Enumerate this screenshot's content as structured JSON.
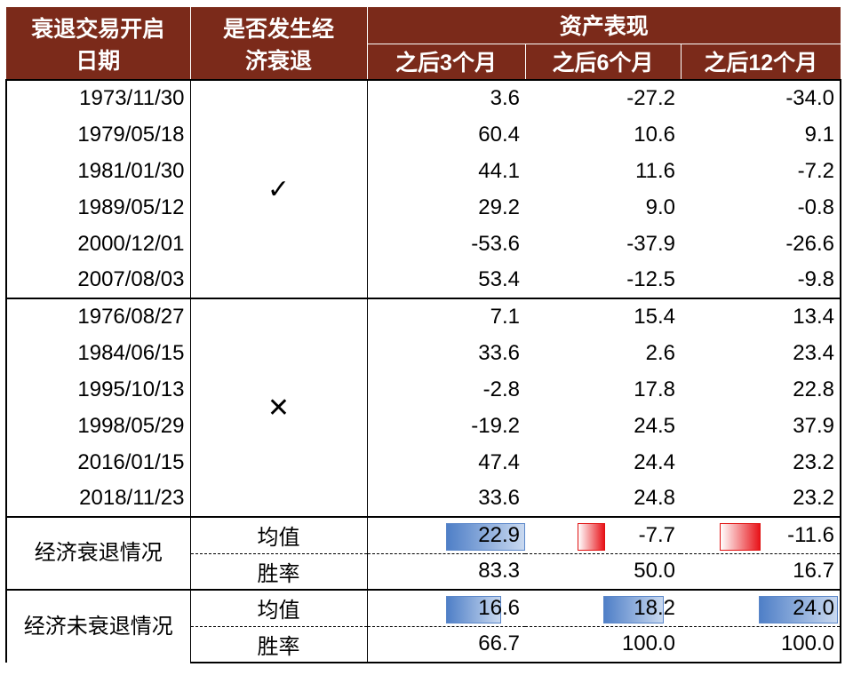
{
  "header": {
    "date": [
      "衰退交易开启",
      "日期"
    ],
    "recession": [
      "是否发生经",
      "济衰退"
    ],
    "assets": "资产表现",
    "periods": [
      "之后3个月",
      "之后6个月",
      "之后12个月"
    ]
  },
  "groups": [
    {
      "mark": "✓",
      "rows": [
        {
          "date": "1973/11/30",
          "values": [
            "3.6",
            "-27.2",
            "-34.0"
          ]
        },
        {
          "date": "1979/05/18",
          "values": [
            "60.4",
            "10.6",
            "9.1"
          ]
        },
        {
          "date": "1981/01/30",
          "values": [
            "44.1",
            "11.6",
            "-7.2"
          ]
        },
        {
          "date": "1989/05/12",
          "values": [
            "29.2",
            "9.0",
            "-0.8"
          ]
        },
        {
          "date": "2000/12/01",
          "values": [
            "-53.6",
            "-37.9",
            "-26.6"
          ]
        },
        {
          "date": "2007/08/03",
          "values": [
            "53.4",
            "-12.5",
            "-9.8"
          ]
        }
      ]
    },
    {
      "mark": "✕",
      "rows": [
        {
          "date": "1976/08/27",
          "values": [
            "7.1",
            "15.4",
            "13.4"
          ]
        },
        {
          "date": "1984/06/15",
          "values": [
            "33.6",
            "2.6",
            "23.4"
          ]
        },
        {
          "date": "1995/10/13",
          "values": [
            "-2.8",
            "17.8",
            "22.8"
          ]
        },
        {
          "date": "1998/05/29",
          "values": [
            "-19.2",
            "24.5",
            "37.9"
          ]
        },
        {
          "date": "2016/01/15",
          "values": [
            "47.4",
            "24.4",
            "23.2"
          ]
        },
        {
          "date": "2018/11/23",
          "values": [
            "33.6",
            "24.8",
            "23.2"
          ]
        }
      ]
    }
  ],
  "summary": [
    {
      "label": "经济衰退情况",
      "rows": [
        {
          "metric": "均值",
          "values": [
            "22.9",
            "-7.7",
            "-11.6"
          ]
        },
        {
          "metric": "胜率",
          "values": [
            "83.3",
            "50.0",
            "16.7"
          ]
        }
      ]
    },
    {
      "label": "经济未衰退情况",
      "rows": [
        {
          "metric": "均值",
          "values": [
            "16.6",
            "18.2",
            "24.0"
          ]
        },
        {
          "metric": "胜率",
          "values": [
            "66.7",
            "100.0",
            "100.0"
          ]
        }
      ]
    }
  ]
}
